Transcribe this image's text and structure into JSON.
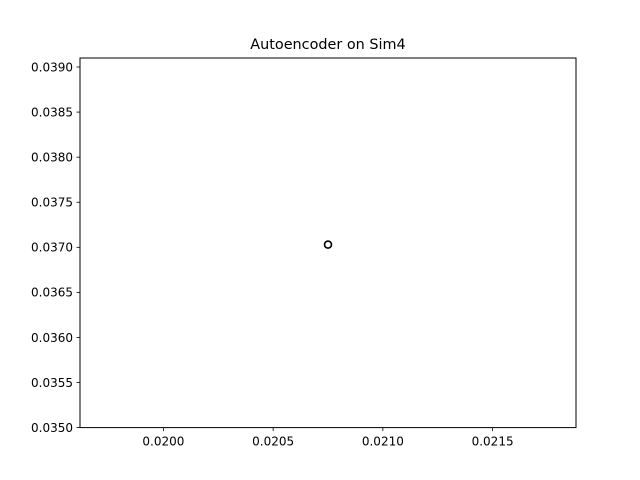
{
  "chart_data": {
    "type": "scatter",
    "title": "Autoencoder on Sim4",
    "xlabel": "",
    "ylabel": "",
    "xlim": [
      0.01962,
      0.02188
    ],
    "ylim": [
      0.035,
      0.0391
    ],
    "x_ticks": [
      0.02,
      0.0205,
      0.021,
      0.0215
    ],
    "x_tick_labels": [
      "0.0200",
      "0.0205",
      "0.0210",
      "0.0215"
    ],
    "y_ticks": [
      0.035,
      0.0355,
      0.036,
      0.0365,
      0.037,
      0.0375,
      0.038,
      0.0385,
      0.039
    ],
    "y_tick_labels": [
      "0.0350",
      "0.0355",
      "0.0360",
      "0.0365",
      "0.0370",
      "0.0375",
      "0.0380",
      "0.0385",
      "0.0390"
    ],
    "grid": false,
    "series": [
      {
        "points": [
          {
            "x": 0.02075,
            "y": 0.03703
          }
        ],
        "marker": "hollow-circle",
        "color": "#000000"
      }
    ]
  }
}
